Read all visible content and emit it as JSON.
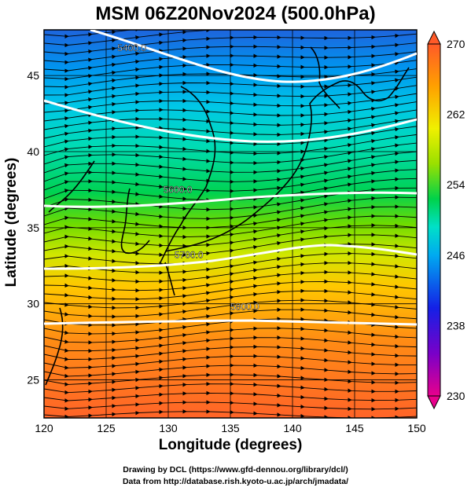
{
  "title": "MSM 06Z20Nov2024 (500.0hPa)",
  "xlabel": "Longitude (degrees)",
  "ylabel": "Latitude  (degrees)",
  "x_ticks": [
    "120",
    "125",
    "130",
    "135",
    "140",
    "145",
    "150"
  ],
  "y_ticks": [
    "25",
    "30",
    "35",
    "40",
    "45"
  ],
  "colorbar": {
    "min": 230,
    "max": 270,
    "ticks": [
      "270",
      "262",
      "254",
      "246",
      "238",
      "230"
    ],
    "colors": [
      "#e8008c",
      "#7a00c8",
      "#1420e6",
      "#00aaf0",
      "#00e0c8",
      "#00d24a",
      "#9ae000",
      "#f0f000",
      "#ffa000",
      "#ff5a28"
    ]
  },
  "contours": [
    {
      "label": "5400.0",
      "lon": 125.9,
      "lat": 46.6
    },
    {
      "label": "5600.0",
      "lon": 129.6,
      "lat": 37.3
    },
    {
      "label": "5700.0",
      "lon": 130.5,
      "lat": 33.0
    },
    {
      "label": "5800.0",
      "lon": 135.0,
      "lat": 29.6
    }
  ],
  "credits": [
    "Drawing by DCL (https://www.gfd-dennou.org/library/dcl/)",
    "Data from http://database.rish.kyoto-u.ac.jp/arch/jmadata/"
  ]
}
